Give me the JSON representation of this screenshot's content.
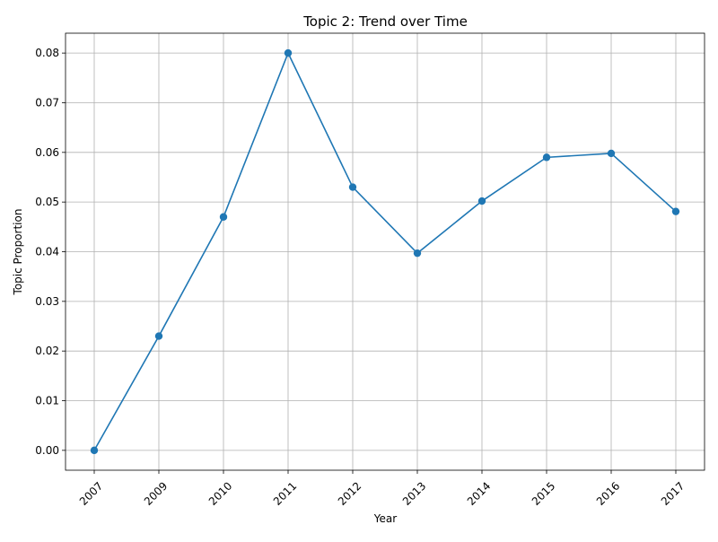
{
  "chart_data": {
    "type": "line",
    "title": "Topic 2: Trend over Time",
    "xlabel": "Year",
    "ylabel": "Topic Proportion",
    "categories": [
      "2007",
      "2009",
      "2010",
      "2011",
      "2012",
      "2013",
      "2014",
      "2015",
      "2016",
      "2017"
    ],
    "series": [
      {
        "values": [
          0.0,
          0.023,
          0.047,
          0.08,
          0.053,
          0.0397,
          0.0502,
          0.059,
          0.0598,
          0.0481
        ],
        "color": "#1f77b4",
        "marker": "circle"
      }
    ],
    "ylim": [
      -0.004,
      0.084
    ],
    "yticks": [
      0.0,
      0.01,
      0.02,
      0.03,
      0.04,
      0.05,
      0.06,
      0.07,
      0.08
    ],
    "ytick_labels": [
      "0.00",
      "0.01",
      "0.02",
      "0.03",
      "0.04",
      "0.05",
      "0.06",
      "0.07",
      "0.08"
    ],
    "xtick_rotation": 45,
    "grid": true,
    "legend": "none"
  }
}
